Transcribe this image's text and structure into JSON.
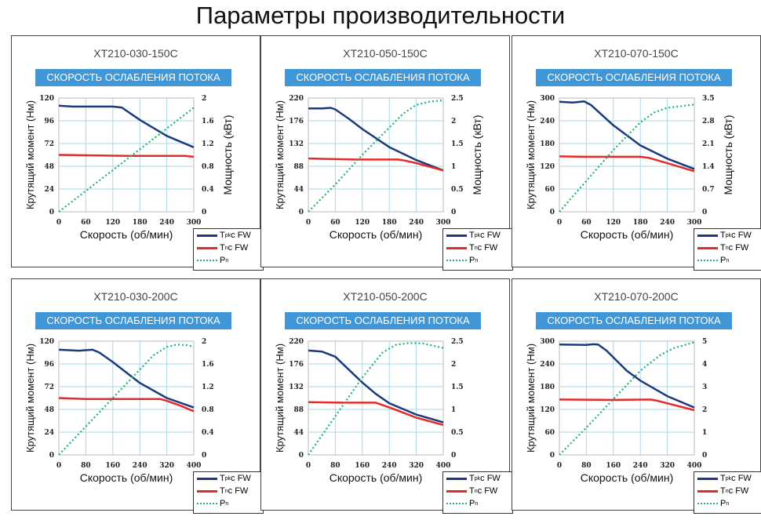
{
  "title": "Параметры производительности",
  "banner": "СКОРОСТЬ ОСЛАБЛЕНИЯ ПОТОКА",
  "colors": {
    "tpk": "#1b3a7c",
    "tn": "#e52a2a",
    "pn": "#1fb27a",
    "banner": "#3f97d8",
    "grid": "#a9d7ea"
  },
  "legend": [
    {
      "main": "T",
      "sub": "pk",
      "rest": " с FW",
      "style": "solid-navy"
    },
    {
      "main": "T",
      "sub": "n",
      "rest": " с FW",
      "style": "solid-red"
    },
    {
      "main": "P",
      "sub": "n",
      "rest": "",
      "style": "dotted-green"
    }
  ],
  "chart_data": [
    {
      "type": "line",
      "title": "XT210-030-150C",
      "xlabel": "Скорость (об/мин)",
      "ylabel": "Крутящий момент (Нм)",
      "y2label": "Мощность (кВт)",
      "xlim": [
        0,
        300
      ],
      "xticks": [
        0,
        60,
        120,
        180,
        240,
        300
      ],
      "ylim": [
        0,
        120
      ],
      "yticks": [
        0,
        24,
        48,
        72,
        96,
        120
      ],
      "y2lim": [
        0,
        2
      ],
      "y2ticks": [
        "0",
        "0.4",
        "0.8",
        "1.2",
        "1.6",
        "2"
      ],
      "grid": true,
      "legend": "bottom-right",
      "series": [
        {
          "name": "Tpk с FW",
          "axis": "left",
          "points": [
            [
              0,
              112
            ],
            [
              30,
              111
            ],
            [
              60,
              111
            ],
            [
              120,
              111
            ],
            [
              140,
              110
            ],
            [
              180,
              97
            ],
            [
              240,
              80
            ],
            [
              300,
              68
            ]
          ]
        },
        {
          "name": "Tn с FW",
          "axis": "left",
          "points": [
            [
              0,
              60
            ],
            [
              150,
              59
            ],
            [
              280,
              59
            ],
            [
              300,
              58
            ]
          ]
        },
        {
          "name": "Pn",
          "axis": "right",
          "points": [
            [
              0,
              0
            ],
            [
              300,
              1.83
            ]
          ]
        }
      ]
    },
    {
      "type": "line",
      "title": "XT210-050-150C",
      "xlabel": "Скорость (об/мин)",
      "ylabel": "Крутящий момент (Нм)",
      "y2label": "Мощность (кВт)",
      "xlim": [
        0,
        300
      ],
      "xticks": [
        0,
        60,
        120,
        180,
        240,
        300
      ],
      "ylim": [
        0,
        220
      ],
      "yticks": [
        0,
        44,
        88,
        132,
        176,
        220
      ],
      "y2lim": [
        0,
        2.5
      ],
      "y2ticks": [
        "0",
        "0.5",
        "1",
        "1.5",
        "2",
        "2.5"
      ],
      "grid": true,
      "legend": "bottom-right",
      "series": [
        {
          "name": "Tpk с FW",
          "axis": "left",
          "points": [
            [
              0,
              200
            ],
            [
              30,
              200
            ],
            [
              50,
              201
            ],
            [
              60,
              198
            ],
            [
              90,
              180
            ],
            [
              120,
              160
            ],
            [
              180,
              125
            ],
            [
              240,
              100
            ],
            [
              300,
              80
            ]
          ]
        },
        {
          "name": "Tn с FW",
          "axis": "left",
          "points": [
            [
              0,
              103
            ],
            [
              100,
              101
            ],
            [
              200,
              101
            ],
            [
              215,
              99
            ],
            [
              240,
              94
            ],
            [
              300,
              80
            ]
          ]
        },
        {
          "name": "Pn",
          "axis": "right",
          "points": [
            [
              0,
              0
            ],
            [
              60,
              0.6
            ],
            [
              120,
              1.25
            ],
            [
              180,
              1.85
            ],
            [
              210,
              2.15
            ],
            [
              240,
              2.35
            ],
            [
              270,
              2.42
            ],
            [
              300,
              2.45
            ]
          ]
        }
      ]
    },
    {
      "type": "line",
      "title": "XT210-070-150C",
      "xlabel": "Скорость (об/мин)",
      "ylabel": "Крутящий момент (Нм)",
      "y2label": "Мощность (кВт)",
      "xlim": [
        0,
        300
      ],
      "xticks": [
        0,
        60,
        120,
        180,
        240,
        300
      ],
      "ylim": [
        0,
        300
      ],
      "yticks": [
        0,
        60,
        120,
        180,
        240,
        300
      ],
      "y2lim": [
        0,
        3.5
      ],
      "y2ticks": [
        "0",
        "0.7",
        "1.4",
        "2.1",
        "2.8",
        "3.5"
      ],
      "grid": true,
      "legend": "bottom-right",
      "series": [
        {
          "name": "Tpk с FW",
          "axis": "left",
          "points": [
            [
              0,
              290
            ],
            [
              30,
              288
            ],
            [
              55,
              291
            ],
            [
              70,
              282
            ],
            [
              120,
              228
            ],
            [
              180,
              175
            ],
            [
              240,
              140
            ],
            [
              300,
              113
            ]
          ]
        },
        {
          "name": "Tn с FW",
          "axis": "left",
          "points": [
            [
              0,
              146
            ],
            [
              60,
              145
            ],
            [
              180,
              145
            ],
            [
              200,
              142
            ],
            [
              240,
              128
            ],
            [
              300,
              107
            ]
          ]
        },
        {
          "name": "Pn",
          "axis": "right",
          "points": [
            [
              0,
              0
            ],
            [
              60,
              0.95
            ],
            [
              120,
              1.9
            ],
            [
              180,
              2.75
            ],
            [
              210,
              3.05
            ],
            [
              240,
              3.2
            ],
            [
              300,
              3.3
            ]
          ]
        }
      ]
    },
    {
      "type": "line",
      "title": "XT210-030-200C",
      "xlabel": "Скорость (об/мин)",
      "ylabel": "Крутящий момент (Нм)",
      "y2label": "",
      "xlim": [
        0,
        400
      ],
      "xticks": [
        0,
        80,
        160,
        240,
        320,
        400
      ],
      "ylim": [
        0,
        120
      ],
      "yticks": [
        0,
        24,
        48,
        72,
        96,
        120
      ],
      "y2lim": [
        0,
        2
      ],
      "y2ticks": [
        "0",
        "0.4",
        "0.8",
        "1.2",
        "1.6",
        "2"
      ],
      "grid": true,
      "legend": "bottom-right",
      "series": [
        {
          "name": "Tpk с FW",
          "axis": "left",
          "points": [
            [
              0,
              111
            ],
            [
              60,
              110
            ],
            [
              100,
              111
            ],
            [
              120,
              108
            ],
            [
              160,
              98
            ],
            [
              240,
              76
            ],
            [
              320,
              60
            ],
            [
              400,
              50
            ]
          ]
        },
        {
          "name": "Tn с FW",
          "axis": "left",
          "points": [
            [
              0,
              60
            ],
            [
              80,
              59
            ],
            [
              300,
              59
            ],
            [
              320,
              57
            ],
            [
              360,
              52
            ],
            [
              400,
              46
            ]
          ]
        },
        {
          "name": "Pn",
          "axis": "right",
          "points": [
            [
              0,
              0
            ],
            [
              80,
              0.5
            ],
            [
              160,
              1.0
            ],
            [
              240,
              1.5
            ],
            [
              280,
              1.75
            ],
            [
              320,
              1.9
            ],
            [
              350,
              1.94
            ],
            [
              380,
              1.93
            ],
            [
              400,
              1.9
            ]
          ]
        }
      ]
    },
    {
      "type": "line",
      "title": "XT210-050-200C",
      "xlabel": "Скорость (об/мин)",
      "ylabel": "Крутящий момент (Нм)",
      "y2label": "",
      "xlim": [
        0,
        400
      ],
      "xticks": [
        0,
        80,
        160,
        240,
        320,
        400
      ],
      "ylim": [
        0,
        220
      ],
      "yticks": [
        0,
        44,
        88,
        132,
        176,
        220
      ],
      "y2lim": [
        0,
        2.5
      ],
      "y2ticks": [
        "0",
        "0.5",
        "1",
        "1.5",
        "2",
        "2.5"
      ],
      "grid": true,
      "legend": "bottom-right",
      "series": [
        {
          "name": "Tpk с FW",
          "axis": "left",
          "points": [
            [
              0,
              202
            ],
            [
              40,
              200
            ],
            [
              80,
              190
            ],
            [
              120,
              165
            ],
            [
              160,
              140
            ],
            [
              200,
              118
            ],
            [
              240,
              100
            ],
            [
              320,
              78
            ],
            [
              400,
              63
            ]
          ]
        },
        {
          "name": "Tn с FW",
          "axis": "left",
          "points": [
            [
              0,
              102
            ],
            [
              100,
              101
            ],
            [
              200,
              101
            ],
            [
              240,
              92
            ],
            [
              320,
              72
            ],
            [
              400,
              58
            ]
          ]
        },
        {
          "name": "Pn",
          "axis": "right",
          "points": [
            [
              0,
              0
            ],
            [
              80,
              0.85
            ],
            [
              160,
              1.7
            ],
            [
              220,
              2.25
            ],
            [
              260,
              2.42
            ],
            [
              300,
              2.46
            ],
            [
              340,
              2.45
            ],
            [
              400,
              2.35
            ]
          ]
        }
      ]
    },
    {
      "type": "line",
      "title": "XT210-070-200C",
      "xlabel": "Скорость (об/мин)",
      "ylabel": "Крутящий момент (Нм)",
      "y2label": "",
      "xlim": [
        0,
        400
      ],
      "xticks": [
        0,
        80,
        160,
        240,
        320,
        400
      ],
      "ylim": [
        0,
        300
      ],
      "yticks": [
        0,
        60,
        120,
        180,
        240,
        300
      ],
      "y2lim": [
        0,
        5
      ],
      "y2ticks": [
        "0",
        "1",
        "2",
        "3",
        "4",
        "5"
      ],
      "grid": true,
      "legend": "bottom-right",
      "series": [
        {
          "name": "Tpk с FW",
          "axis": "left",
          "points": [
            [
              0,
              291
            ],
            [
              80,
              290
            ],
            [
              100,
              292
            ],
            [
              115,
              291
            ],
            [
              140,
              275
            ],
            [
              200,
              222
            ],
            [
              240,
              196
            ],
            [
              320,
              155
            ],
            [
              400,
              125
            ]
          ]
        },
        {
          "name": "Tn с FW",
          "axis": "left",
          "points": [
            [
              0,
              146
            ],
            [
              160,
              145
            ],
            [
              270,
              146
            ],
            [
              290,
              143
            ],
            [
              400,
              118
            ]
          ]
        },
        {
          "name": "Pn",
          "axis": "right",
          "points": [
            [
              0,
              0
            ],
            [
              80,
              1.2
            ],
            [
              160,
              2.45
            ],
            [
              240,
              3.7
            ],
            [
              300,
              4.4
            ],
            [
              340,
              4.7
            ],
            [
              400,
              4.95
            ]
          ]
        }
      ]
    }
  ]
}
